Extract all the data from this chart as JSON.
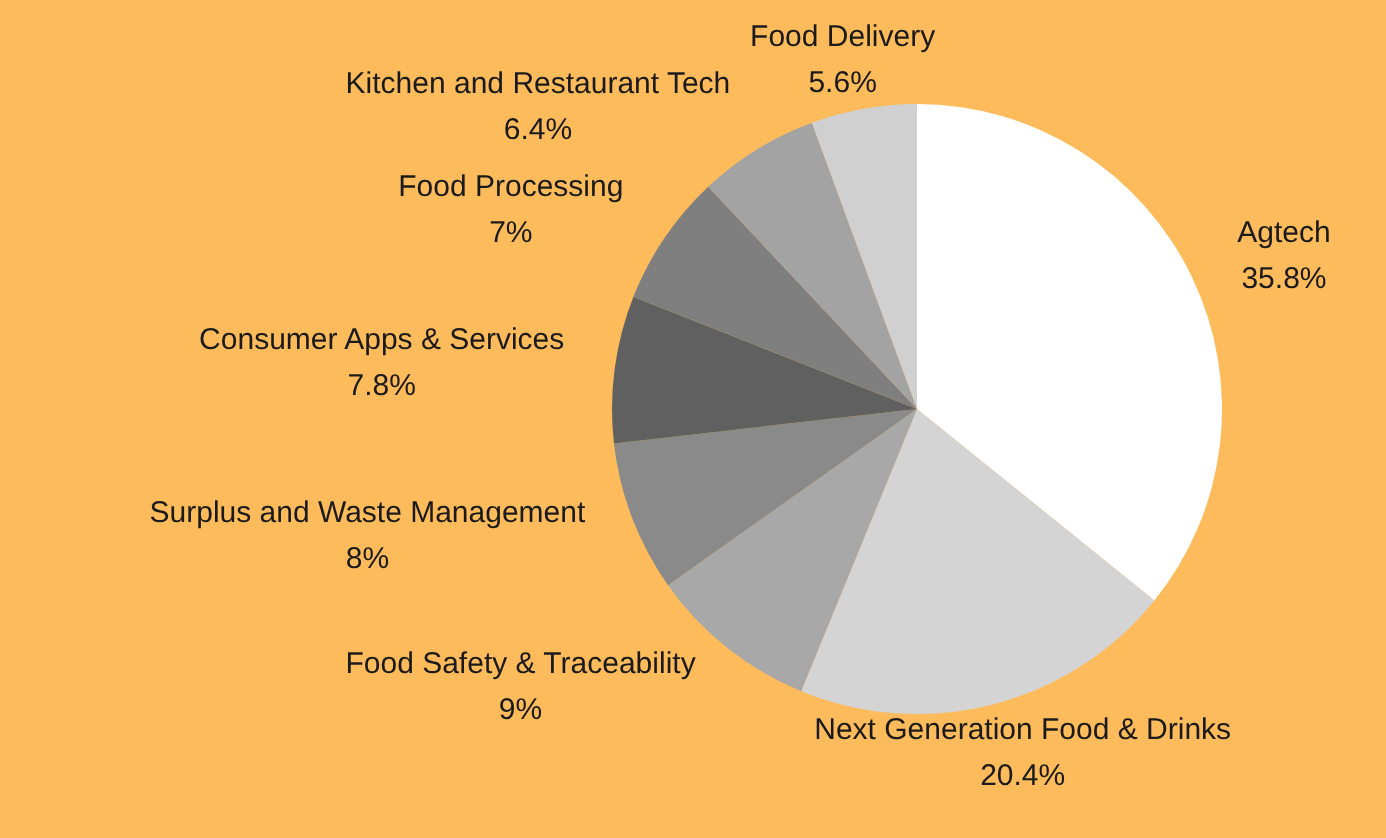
{
  "chart_data": {
    "type": "pie",
    "categories": [
      "Agtech",
      "Next Generation Food & Drinks",
      "Food Safety & Traceability",
      "Surplus and Waste Management",
      "Consumer Apps & Services",
      "Food Processing",
      "Kitchen and Restaurant Tech",
      "Food Delivery"
    ],
    "values": [
      35.8,
      20.4,
      9,
      8,
      7.8,
      7,
      6.4,
      5.6
    ],
    "value_labels": [
      "35.8%",
      "20.4%",
      "9%",
      "8%",
      "7.8%",
      "7%",
      "6.4%",
      "5.6%"
    ],
    "colors": [
      "#ffffff",
      "#d4d4d4",
      "#a8a8a8",
      "#8a8a8a",
      "#606060",
      "#7f7f7f",
      "#a3a3a3",
      "#d0d0d0"
    ],
    "legend": false
  }
}
